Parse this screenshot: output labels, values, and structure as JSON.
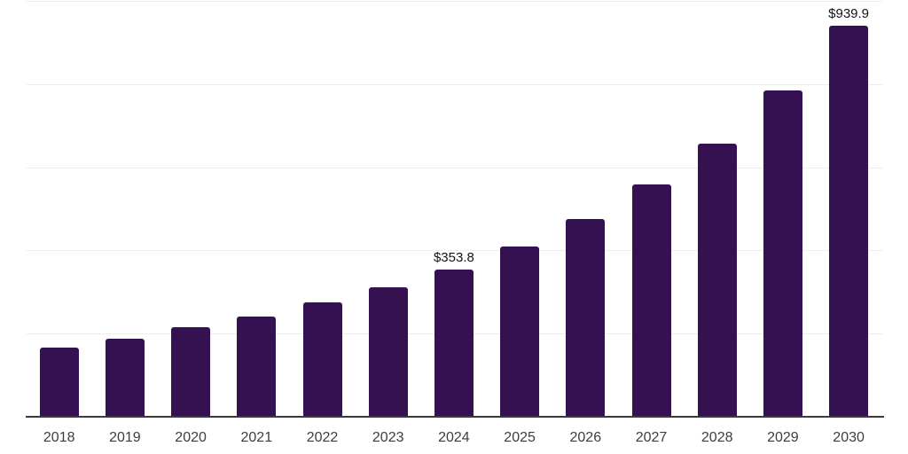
{
  "chart_data": {
    "type": "bar",
    "title": "",
    "xlabel": "",
    "ylabel": "",
    "categories": [
      "2018",
      "2019",
      "2020",
      "2021",
      "2022",
      "2023",
      "2024",
      "2025",
      "2026",
      "2027",
      "2028",
      "2029",
      "2030"
    ],
    "values": [
      166,
      188,
      215,
      241,
      275,
      311,
      353.8,
      410,
      476,
      558,
      657,
      785,
      939.9
    ],
    "data_labels": {
      "2024": "$353.8",
      "2030": "$939.9"
    },
    "ylim": [
      0,
      1000
    ],
    "gridline_values": [
      200,
      400,
      600,
      800,
      1000
    ],
    "grid": "horizontal",
    "legend_position": "none",
    "colors": {
      "bar": "#351151",
      "gridline": "#ededed",
      "axis_line": "#3a3a3a",
      "tick_label": "#3d3d3d",
      "data_label": "#131313",
      "background": "#ffffff"
    }
  }
}
